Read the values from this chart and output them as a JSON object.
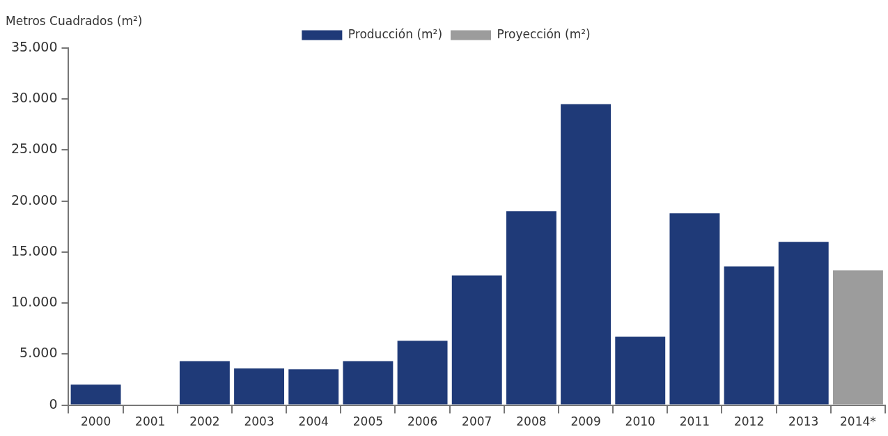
{
  "chart_data": {
    "type": "bar",
    "ylabel": "Metros Cuadrados (m²)",
    "categories": [
      "2000",
      "2001",
      "2002",
      "2003",
      "2004",
      "2005",
      "2006",
      "2007",
      "2008",
      "2009",
      "2010",
      "2011",
      "2012",
      "2013",
      "2014*"
    ],
    "series": [
      {
        "name": "Producción (m²)",
        "color": "#1f3a78",
        "values": [
          2000,
          0,
          4300,
          3600,
          3500,
          4300,
          6300,
          12700,
          19000,
          29500,
          6700,
          18800,
          13600,
          16000,
          null
        ]
      },
      {
        "name": "Proyección (m²)",
        "color": "#9c9c9c",
        "values": [
          null,
          null,
          null,
          null,
          null,
          null,
          null,
          null,
          null,
          null,
          null,
          null,
          null,
          null,
          13200
        ]
      }
    ],
    "ylim": [
      0,
      35000
    ],
    "yticks": [
      {
        "value": 0,
        "label": "0"
      },
      {
        "value": 5000,
        "label": "5.000"
      },
      {
        "value": 10000,
        "label": "10.000"
      },
      {
        "value": 15000,
        "label": "15.000"
      },
      {
        "value": 20000,
        "label": "20.000"
      },
      {
        "value": 25000,
        "label": "25.000"
      },
      {
        "value": 30000,
        "label": "30.000"
      },
      {
        "value": 35000,
        "label": "35.000"
      }
    ],
    "grid": false,
    "legend": "top"
  }
}
